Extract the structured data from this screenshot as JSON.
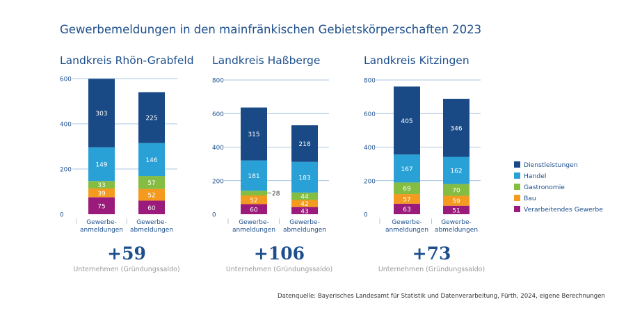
{
  "figure": {
    "title": "Gewerbemeldungen in den mainfränkischen Gebietskörperschaften 2023",
    "source": "Datenquelle: Bayerisches Landesamt für Statistik und Datenverarbeitung, Fürth, 2024, eigene Berechnungen"
  },
  "colors": {
    "Dienstleistungen": "#1a4a86",
    "Handel": "#2aa1d6",
    "Gastronomie": "#84bd41",
    "Bau": "#f39a1f",
    "Verarbeitendes Gewerbe": "#9a1b7c",
    "title": "#1d4f8c",
    "axis_text": "#1d4f8c",
    "gridline": "#8fb3d9",
    "subtext": "#9a9a9a"
  },
  "legend": [
    "Dienstleistungen",
    "Handel",
    "Gastronomie",
    "Bau",
    "Verarbeitendes Gewerbe"
  ],
  "chart_data": [
    {
      "type": "bar",
      "stacked": true,
      "title": "Landkreis Rhön-Grabfeld",
      "categories": [
        "Gewerbe-\nanmeldungen",
        "Gewerbe-\nabmeldungen"
      ],
      "ylim": [
        0,
        600
      ],
      "yticks": [
        0,
        200,
        400,
        600
      ],
      "series": [
        {
          "name": "Verarbeitendes Gewerbe",
          "values": [
            75,
            60
          ]
        },
        {
          "name": "Bau",
          "values": [
            39,
            52
          ]
        },
        {
          "name": "Gastronomie",
          "values": [
            33,
            57
          ]
        },
        {
          "name": "Handel",
          "values": [
            149,
            146
          ]
        },
        {
          "name": "Dienstleistungen",
          "values": [
            303,
            225
          ]
        }
      ],
      "saldo": "+59",
      "saldo_label": "Unternehmen (Gründungssaldo)"
    },
    {
      "type": "bar",
      "stacked": true,
      "title": "Landkreis Haßberge",
      "categories": [
        "Gewerbe-\nanmeldungen",
        "Gewerbe-\nabmeldungen"
      ],
      "ylim": [
        0,
        800
      ],
      "yticks": [
        0,
        200,
        400,
        600,
        800
      ],
      "series": [
        {
          "name": "Verarbeitendes Gewerbe",
          "values": [
            60,
            43
          ]
        },
        {
          "name": "Bau",
          "values": [
            52,
            42
          ]
        },
        {
          "name": "Gastronomie",
          "values": [
            28,
            44
          ]
        },
        {
          "name": "Handel",
          "values": [
            181,
            183
          ]
        },
        {
          "name": "Dienstleistungen",
          "values": [
            315,
            218
          ]
        }
      ],
      "saldo": "+106",
      "saldo_label": "Unternehmen (Gründungssaldo)"
    },
    {
      "type": "bar",
      "stacked": true,
      "title": "Landkreis Kitzingen",
      "categories": [
        "Gewerbe-\nanmeldungen",
        "Gewerbe-\nabmeldungen"
      ],
      "ylim": [
        0,
        800
      ],
      "yticks": [
        0,
        200,
        400,
        600,
        800
      ],
      "series": [
        {
          "name": "Verarbeitendes Gewerbe",
          "values": [
            63,
            51
          ]
        },
        {
          "name": "Bau",
          "values": [
            57,
            59
          ]
        },
        {
          "name": "Gastronomie",
          "values": [
            69,
            70
          ]
        },
        {
          "name": "Handel",
          "values": [
            167,
            162
          ]
        },
        {
          "name": "Dienstleistungen",
          "values": [
            405,
            346
          ]
        }
      ],
      "saldo": "+73",
      "saldo_label": "Unternehmen (Gründungssaldo)"
    }
  ]
}
